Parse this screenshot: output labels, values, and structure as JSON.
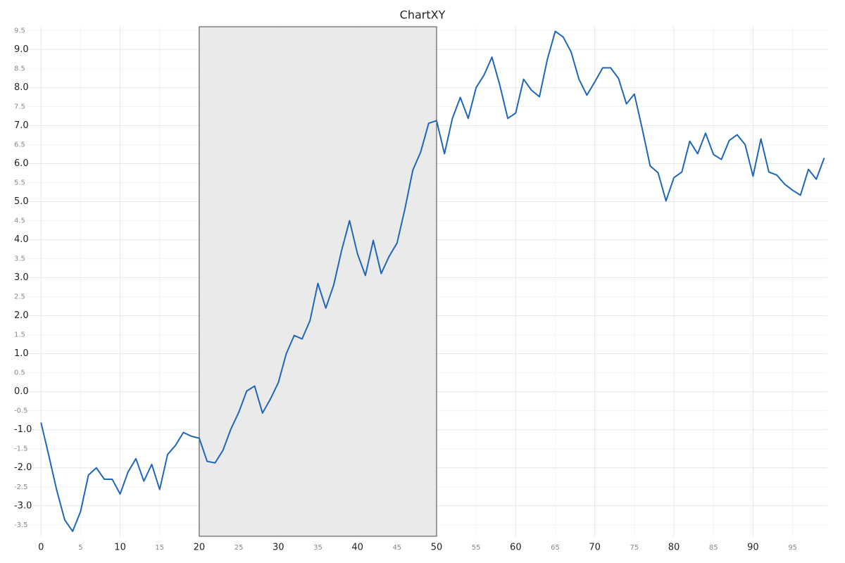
{
  "chart_data": {
    "type": "line",
    "title": "ChartXY",
    "x": [
      0,
      1,
      2,
      3,
      4,
      5,
      6,
      7,
      8,
      9,
      10,
      11,
      12,
      13,
      14,
      15,
      16,
      17,
      18,
      19,
      20,
      21,
      22,
      23,
      24,
      25,
      26,
      27,
      28,
      29,
      30,
      31,
      32,
      33,
      34,
      35,
      36,
      37,
      38,
      39,
      40,
      41,
      42,
      43,
      44,
      45,
      46,
      47,
      48,
      49,
      50,
      51,
      52,
      53,
      54,
      55,
      56,
      57,
      58,
      59,
      60,
      61,
      62,
      63,
      64,
      65,
      66,
      67,
      68,
      69,
      70,
      71,
      72,
      73,
      74,
      75,
      76,
      77,
      78,
      79,
      80,
      81,
      82,
      83,
      84,
      85,
      86,
      87,
      88,
      89,
      90,
      91,
      92,
      93,
      94,
      95,
      96,
      97,
      98,
      99
    ],
    "series": [
      {
        "color": "#1f66b8",
        "values": [
          -0.81,
          -1.69,
          -2.6,
          -3.37,
          -3.67,
          -3.15,
          -2.19,
          -2.0,
          -2.3,
          -2.3,
          -2.69,
          -2.11,
          -1.76,
          -2.35,
          -1.91,
          -2.57,
          -1.65,
          -1.41,
          -1.07,
          -1.17,
          -1.22,
          -1.83,
          -1.87,
          -1.54,
          -0.98,
          -0.54,
          0.02,
          0.15,
          -0.56,
          -0.19,
          0.24,
          1.0,
          1.48,
          1.39,
          1.87,
          2.85,
          2.2,
          2.81,
          3.72,
          4.5,
          3.63,
          3.06,
          3.98,
          3.11,
          3.56,
          3.91,
          4.81,
          5.83,
          6.31,
          7.06,
          7.13,
          6.26,
          7.19,
          7.74,
          7.19,
          8.0,
          8.33,
          8.8,
          8.06,
          7.19,
          7.33,
          8.22,
          7.93,
          7.76,
          8.74,
          9.48,
          9.33,
          8.94,
          8.22,
          7.8,
          8.15,
          8.52,
          8.52,
          8.24,
          7.57,
          7.83,
          6.91,
          5.94,
          5.76,
          5.02,
          5.63,
          5.78,
          6.59,
          6.26,
          6.8,
          6.24,
          6.11,
          6.61,
          6.76,
          6.5,
          5.67,
          6.65,
          5.78,
          5.7,
          5.46,
          5.3,
          5.17,
          5.85,
          5.59,
          6.15
        ]
      }
    ],
    "band": [
      20,
      50
    ],
    "band_color": "#e8e8e8",
    "xlim": [
      -1.8,
      99.4
    ],
    "ylim": [
      -3.8,
      9.6
    ],
    "xticks": [
      0,
      10,
      20,
      30,
      40,
      50,
      60,
      70,
      80,
      90
    ],
    "xticks_minor": [
      5,
      15,
      25,
      35,
      45,
      55,
      65,
      75,
      85,
      95
    ],
    "yticks": [
      {
        "value": -3,
        "label": "-3.0"
      },
      {
        "value": -2,
        "label": "-2.0"
      },
      {
        "value": -1,
        "label": "-1.0"
      },
      {
        "value": 0,
        "label": "0.0"
      },
      {
        "value": 1,
        "label": "1.0"
      },
      {
        "value": 2,
        "label": "2.0"
      },
      {
        "value": 3,
        "label": "3.0"
      },
      {
        "value": 4,
        "label": "4.0"
      },
      {
        "value": 5,
        "label": "5.0"
      },
      {
        "value": 6,
        "label": "6.0"
      },
      {
        "value": 7,
        "label": "7.0"
      },
      {
        "value": 8,
        "label": "8.0"
      },
      {
        "value": 9,
        "label": "9.0"
      }
    ],
    "yticks_minor": [
      -3.5,
      -2.5,
      -1.5,
      -0.5,
      0.5,
      1.5,
      2.5,
      3.5,
      4.5,
      5.5,
      6.5,
      7.5,
      8.5,
      9.5
    ],
    "grid": true
  }
}
